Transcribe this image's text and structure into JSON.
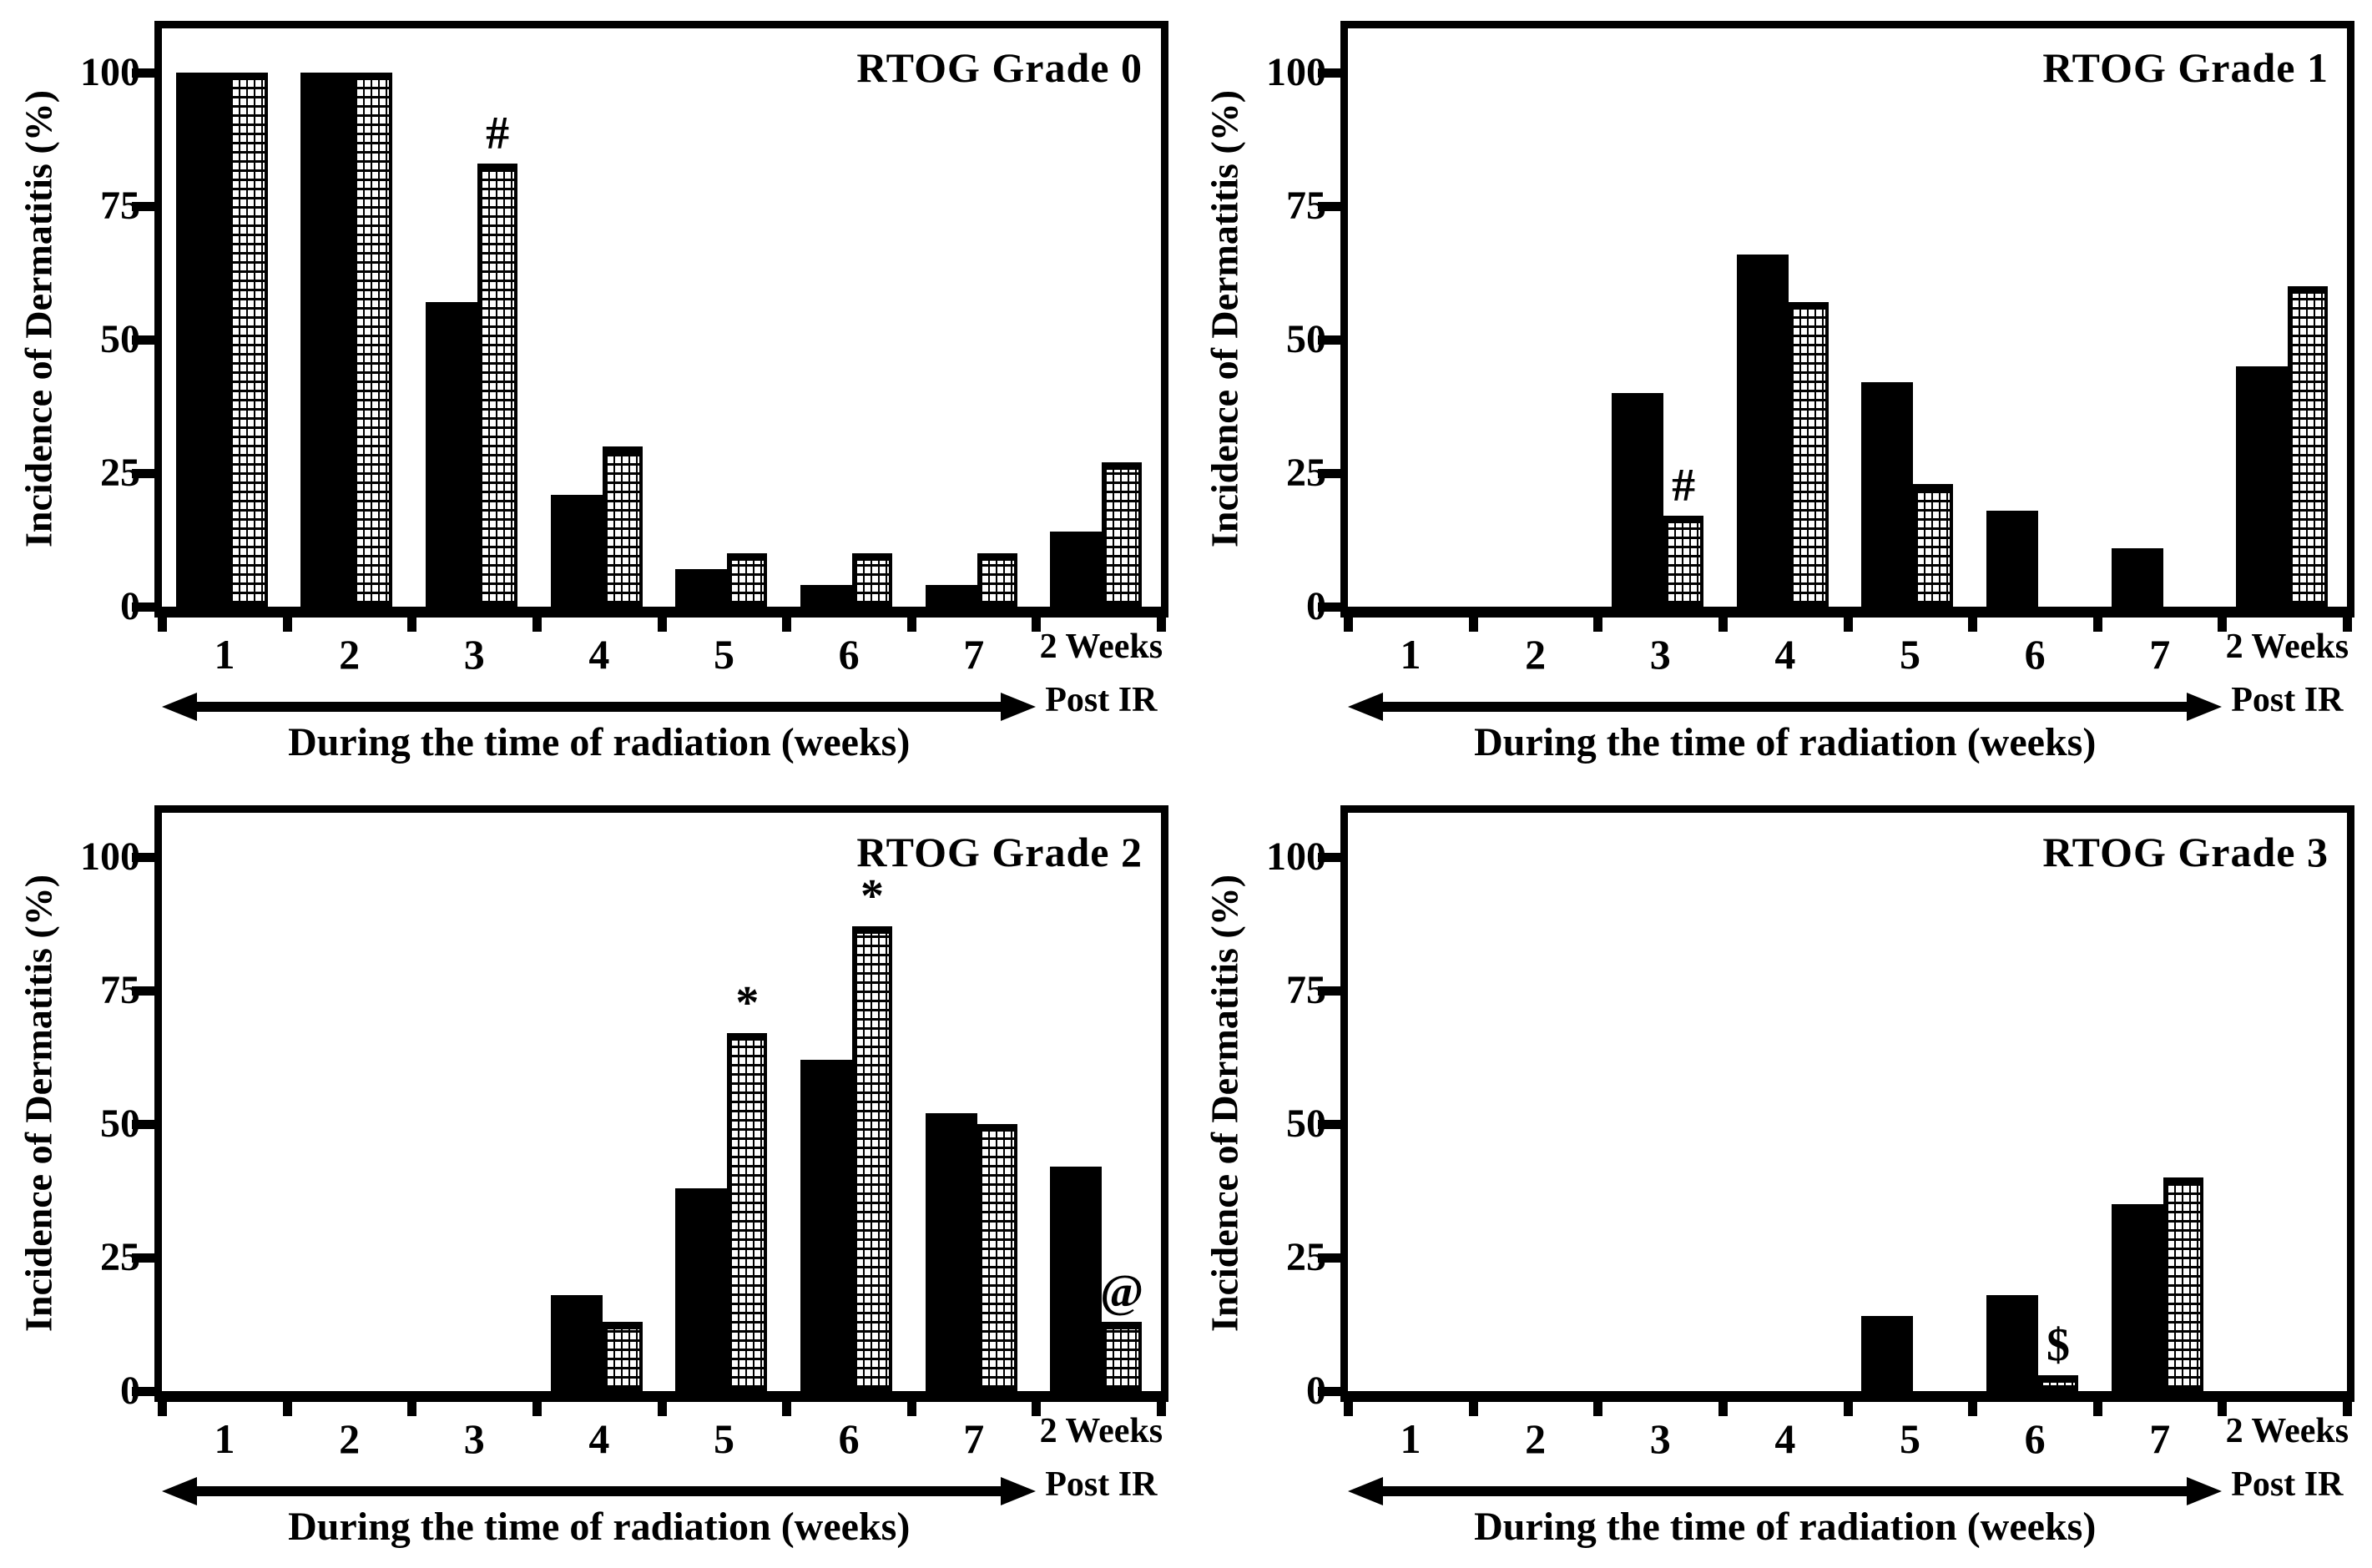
{
  "figure": {
    "background": "#ffffff",
    "x_axis_label": "During the time of radiation (weeks)",
    "post_ir_line1": "2 Weeks",
    "post_ir_line2": "Post IR",
    "colors": {
      "solid_bar": "#000000",
      "stippled_bar_fill": "#ffffff",
      "stippled_bar_pattern": "#000000",
      "axis": "#000000"
    },
    "series_names": [
      "solid-black-bar",
      "stippled-pattern-bar"
    ]
  },
  "chart_data": [
    {
      "type": "bar",
      "title": "RTOG Grade 0",
      "ylabel": "Incidence of Dermatitis (%)",
      "xlabel": "During the time of radiation (weeks)",
      "ylim": [
        0,
        110
      ],
      "yticks": [
        0,
        25,
        50,
        75,
        100
      ],
      "grid": false,
      "legend": "none",
      "categories": [
        "1",
        "2",
        "3",
        "4",
        "5",
        "6",
        "7",
        "2 Weeks Post IR"
      ],
      "series": [
        {
          "name": "solid-black-bar",
          "values": [
            100,
            100,
            57,
            21,
            7,
            4,
            4,
            14
          ]
        },
        {
          "name": "stippled-pattern-bar",
          "values": [
            100,
            100,
            83,
            30,
            10,
            10,
            10,
            27
          ]
        }
      ],
      "annotations": [
        {
          "symbol": "#",
          "category": "3",
          "on": "stippled-pattern-bar"
        }
      ]
    },
    {
      "type": "bar",
      "title": "RTOG Grade 1",
      "ylabel": "Incidence of Dermatitis (%)",
      "xlabel": "During the time of radiation (weeks)",
      "ylim": [
        0,
        110
      ],
      "yticks": [
        0,
        25,
        50,
        75,
        100
      ],
      "grid": false,
      "legend": "none",
      "categories": [
        "1",
        "2",
        "3",
        "4",
        "5",
        "6",
        "7",
        "2 Weeks Post IR"
      ],
      "series": [
        {
          "name": "solid-black-bar",
          "values": [
            0,
            0,
            40,
            66,
            42,
            18,
            11,
            45
          ]
        },
        {
          "name": "stippled-pattern-bar",
          "values": [
            0,
            0,
            17,
            57,
            23,
            0,
            0,
            60
          ]
        }
      ],
      "annotations": [
        {
          "symbol": "#",
          "category": "3",
          "on": "stippled-pattern-bar"
        }
      ]
    },
    {
      "type": "bar",
      "title": "RTOG Grade 2",
      "ylabel": "Incidence of Dermatitis (%)",
      "xlabel": "During the time of radiation (weeks)",
      "ylim": [
        0,
        110
      ],
      "yticks": [
        0,
        25,
        50,
        75,
        100
      ],
      "grid": false,
      "legend": "none",
      "categories": [
        "1",
        "2",
        "3",
        "4",
        "5",
        "6",
        "7",
        "2 Weeks Post IR"
      ],
      "series": [
        {
          "name": "solid-black-bar",
          "values": [
            0,
            0,
            0,
            18,
            38,
            62,
            52,
            42
          ]
        },
        {
          "name": "stippled-pattern-bar",
          "values": [
            0,
            0,
            0,
            13,
            67,
            87,
            50,
            13
          ]
        }
      ],
      "annotations": [
        {
          "symbol": "*",
          "category": "5",
          "on": "stippled-pattern-bar"
        },
        {
          "symbol": "*",
          "category": "6",
          "on": "stippled-pattern-bar"
        },
        {
          "symbol": "@",
          "category": "2 Weeks Post IR",
          "on": "stippled-pattern-bar"
        }
      ]
    },
    {
      "type": "bar",
      "title": "RTOG Grade 3",
      "ylabel": "Incidence of Dermatitis (%)",
      "xlabel": "During the time of radiation (weeks)",
      "ylim": [
        0,
        110
      ],
      "yticks": [
        0,
        25,
        50,
        75,
        100
      ],
      "grid": false,
      "legend": "none",
      "categories": [
        "1",
        "2",
        "3",
        "4",
        "5",
        "6",
        "7",
        "2 Weeks Post IR"
      ],
      "series": [
        {
          "name": "solid-black-bar",
          "values": [
            0,
            0,
            0,
            0,
            14,
            18,
            35,
            0
          ]
        },
        {
          "name": "stippled-pattern-bar",
          "values": [
            0,
            0,
            0,
            0,
            0,
            3,
            40,
            0
          ]
        }
      ],
      "annotations": [
        {
          "symbol": "$",
          "category": "6",
          "on": "stippled-pattern-bar"
        }
      ]
    }
  ]
}
